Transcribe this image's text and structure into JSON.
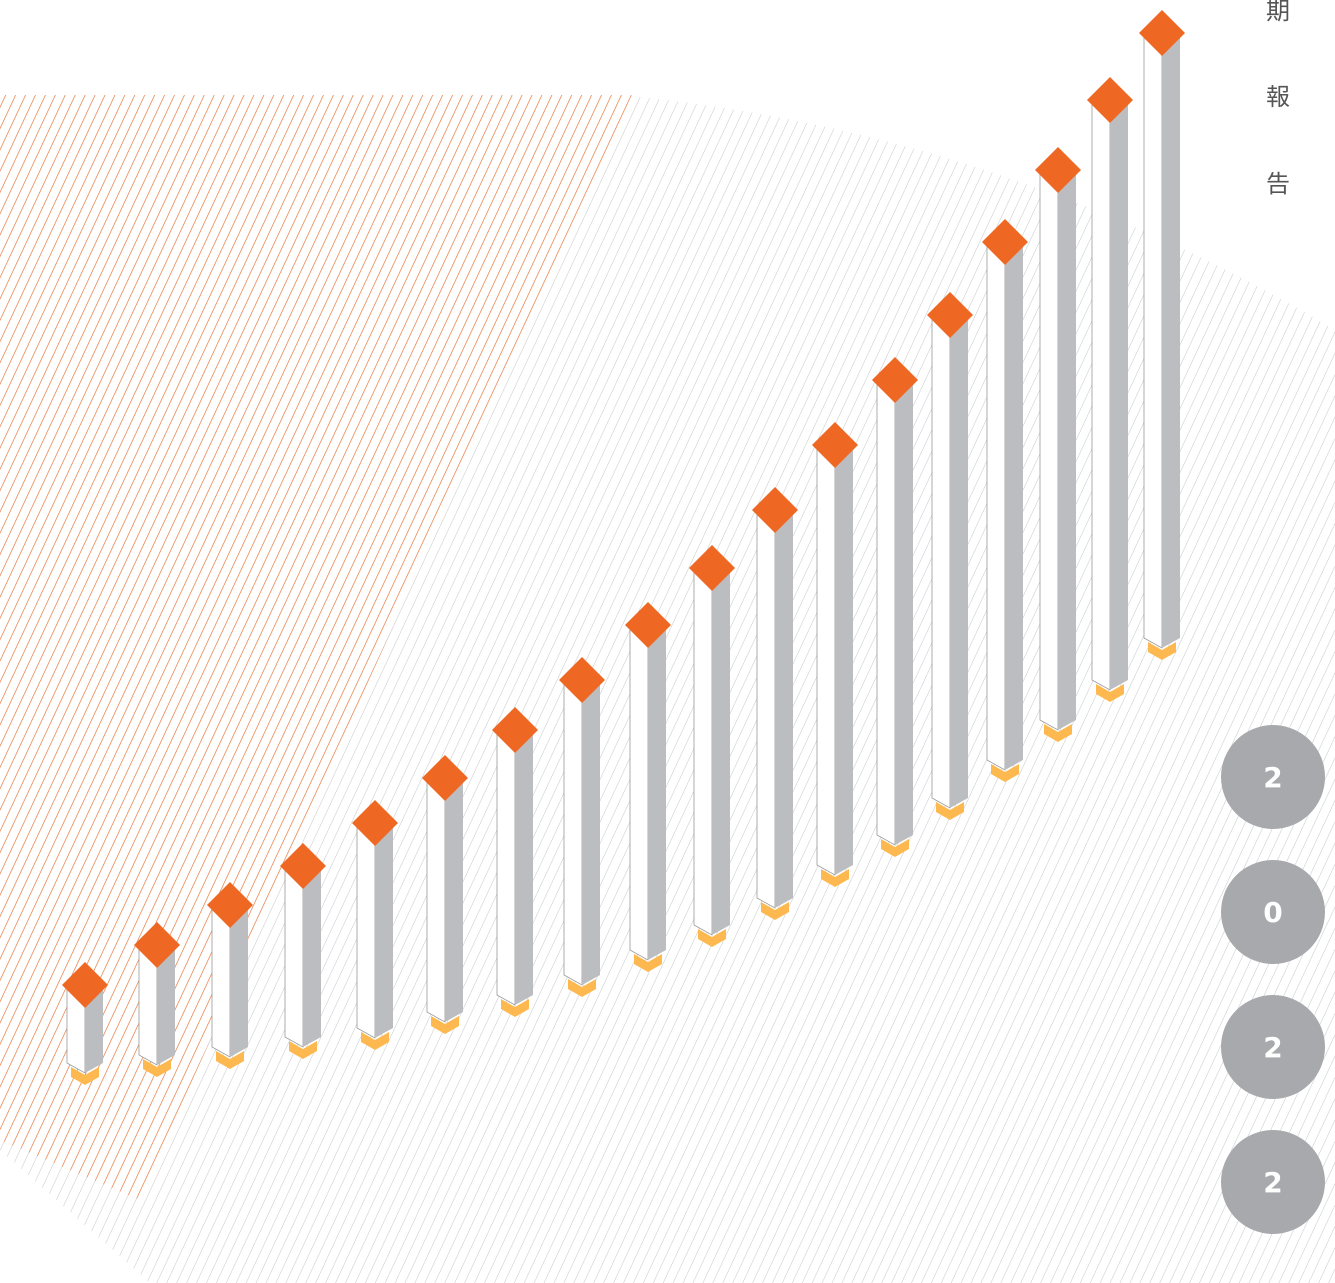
{
  "title_chars": [
    "期",
    "報",
    "告"
  ],
  "year_digits": [
    "2",
    "0",
    "2",
    "2"
  ]
}
